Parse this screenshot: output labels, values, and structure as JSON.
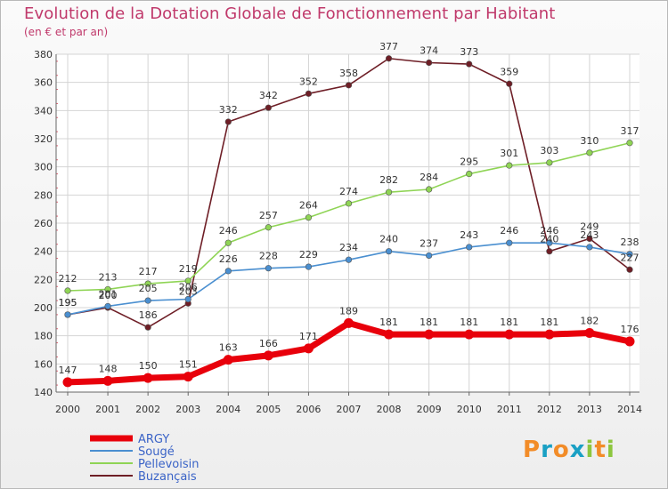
{
  "page": {
    "title": "Evolution de la Dotation Globale de Fonctionnement par Habitant",
    "subtitle": "(en € et par an)"
  },
  "brand": {
    "text": "Proxiti",
    "letters": [
      "P",
      "r",
      "o",
      "x",
      "i",
      "t",
      "i"
    ],
    "colors": [
      "#f28c28",
      "#1aa0c4",
      "#f28c28",
      "#1aa0c4",
      "#8dc63f",
      "#f28c28",
      "#8dc63f"
    ]
  },
  "chart_data": {
    "type": "line",
    "title": "Evolution de la Dotation Globale de Fonctionnement par Habitant",
    "subtitle": "(en € et par an)",
    "xlabel": "",
    "ylabel": "",
    "x": [
      "2000",
      "2001",
      "2002",
      "2003",
      "2004",
      "2005",
      "2006",
      "2007",
      "2008",
      "2009",
      "2010",
      "2011",
      "2012",
      "2013",
      "2014"
    ],
    "ylim": [
      140,
      380
    ],
    "yticks": [
      140,
      160,
      180,
      200,
      220,
      240,
      260,
      280,
      300,
      320,
      340,
      360,
      380
    ],
    "grid": true,
    "legend": "bottom-left",
    "series": [
      {
        "name": "ARGY",
        "color": "#e8000b",
        "bold": true,
        "values": [
          147,
          148,
          150,
          151,
          163,
          166,
          171,
          189,
          181,
          181,
          181,
          181,
          181,
          182,
          176
        ]
      },
      {
        "name": "Sougé",
        "color": "#4a8fd0",
        "bold": false,
        "values": [
          195,
          201,
          205,
          206,
          226,
          228,
          229,
          234,
          240,
          237,
          243,
          246,
          246,
          243,
          238
        ]
      },
      {
        "name": "Pellevoisin",
        "color": "#8fd455",
        "bold": false,
        "values": [
          212,
          213,
          217,
          219,
          246,
          257,
          264,
          274,
          282,
          284,
          295,
          301,
          303,
          310,
          317
        ]
      },
      {
        "name": "Buzançais",
        "color": "#6e1e26",
        "bold": false,
        "values": [
          195,
          200,
          186,
          203,
          332,
          342,
          352,
          358,
          377,
          374,
          373,
          359,
          240,
          249,
          227
        ]
      }
    ]
  }
}
